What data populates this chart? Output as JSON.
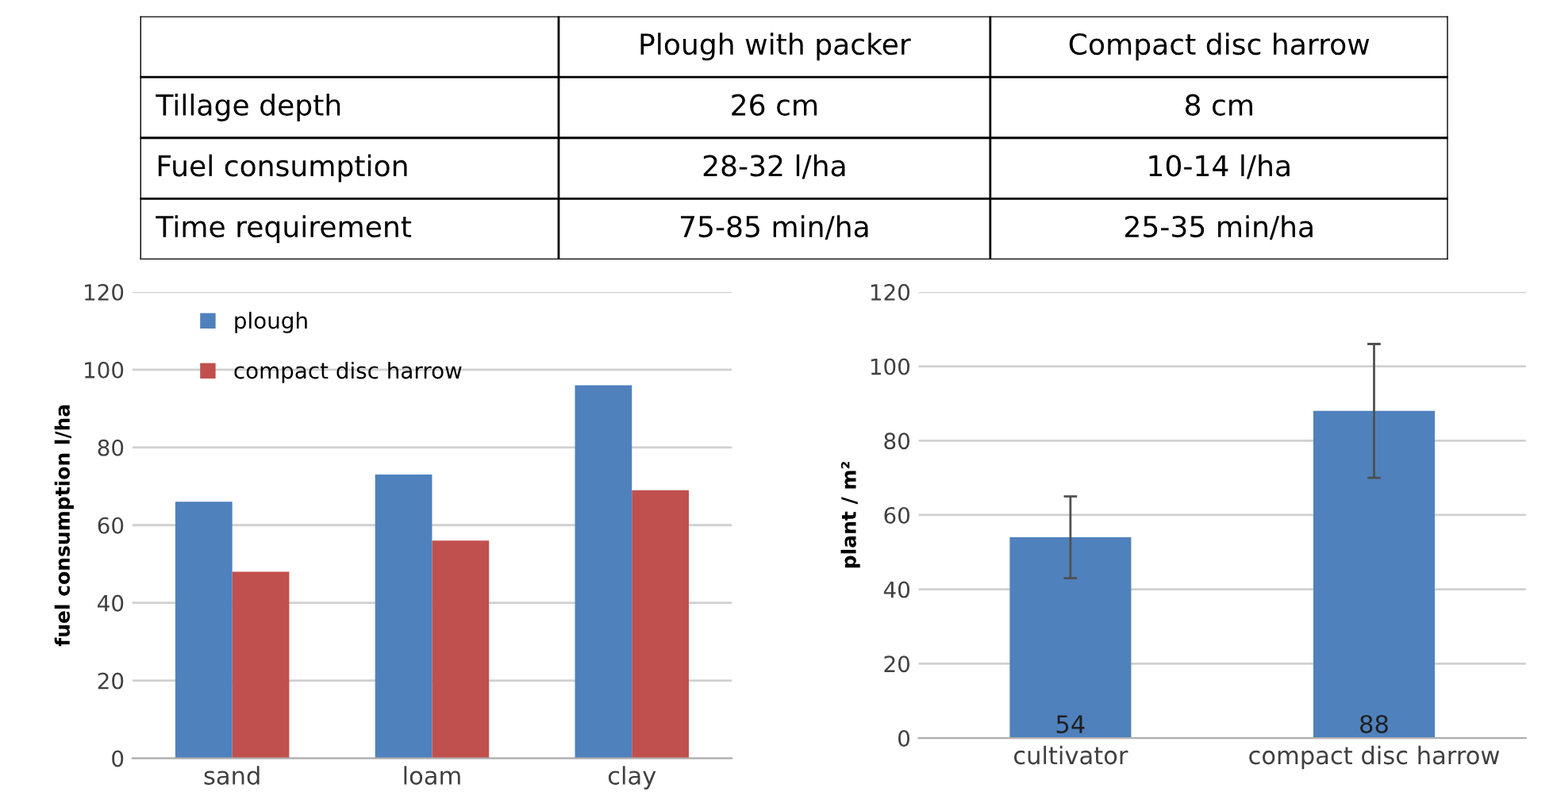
{
  "chart_data": [
    {
      "type": "other",
      "annotations": [
        "Plough with packer",
        "Compact disc harrow",
        "Tillage depth",
        "26 cm",
        "8 cm",
        "Fuel consumption",
        "28-32 l/ha",
        "10-14 l/ha",
        "Time requirement",
        "75-85 min/ha",
        "25-35 min/ha"
      ]
    },
    {
      "type": "bar",
      "ylabel": "fuel consumption l/ha",
      "categories": [
        "sand",
        "loam",
        "clay"
      ],
      "series": [
        {
          "name": "plough",
          "color": "#4f81bd",
          "values": [
            66,
            73,
            96
          ]
        },
        {
          "name": "compact disc harrow",
          "color": "#c0504d",
          "values": [
            48,
            56,
            69
          ]
        }
      ],
      "ylim": [
        0,
        120
      ],
      "yticks": [
        0,
        20,
        40,
        60,
        80,
        100,
        120
      ],
      "grid": "y",
      "legend": "top left"
    },
    {
      "type": "bar",
      "ylabel": "plant / m²",
      "categories": [
        "cultivator",
        "compact disc harrow"
      ],
      "values": [
        54,
        88
      ],
      "errors": [
        [
          43,
          65
        ],
        [
          70,
          106
        ]
      ],
      "color": "#4f81bd",
      "data_labels": true,
      "ylim": [
        0,
        120
      ],
      "yticks": [
        0,
        20,
        40,
        60,
        80,
        100,
        120
      ],
      "grid": "y"
    }
  ]
}
